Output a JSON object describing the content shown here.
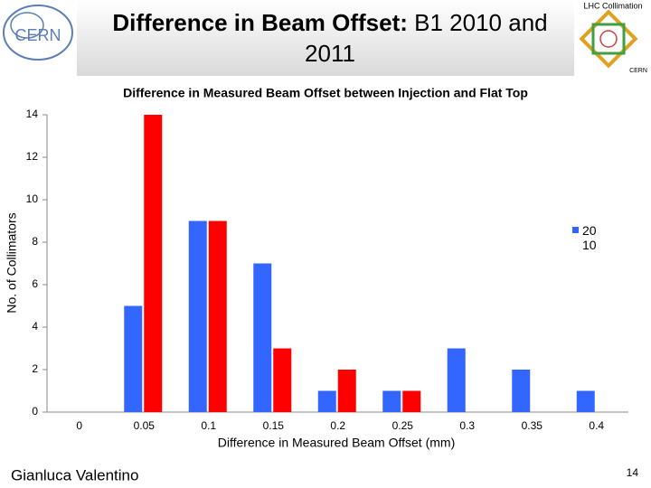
{
  "header": {
    "title_bold": "Difference in Beam Offset:",
    "title_rest": "B1 2010 and 2011",
    "logo_left": "CERN",
    "logo_right": "LHC Collimation",
    "logo_right_sub": "CERN"
  },
  "chart_data": {
    "type": "bar",
    "title": "Difference in Measured Beam Offset between Injection and Flat Top",
    "x_label": "Difference in Measured Beam Offset (mm)",
    "y_label": "No. of Collimators",
    "categories": [
      "0",
      "0.05",
      "0.1",
      "0.15",
      "0.2",
      "0.25",
      "0.3",
      "0.35",
      "0.4"
    ],
    "series": [
      {
        "name": "2010",
        "color": "#3366ff",
        "values": [
          0,
          5,
          9,
          7,
          1,
          1,
          3,
          2,
          1
        ]
      },
      {
        "color": "#ff0000",
        "values": [
          0,
          14,
          9,
          3,
          2,
          1,
          0,
          0,
          0
        ]
      }
    ],
    "ylim": [
      0,
      14
    ],
    "yticks": [
      0,
      2,
      4,
      6,
      8,
      10,
      12,
      14
    ],
    "legend": "right"
  },
  "footer": {
    "author": "Gianluca Valentino",
    "page": "14"
  }
}
